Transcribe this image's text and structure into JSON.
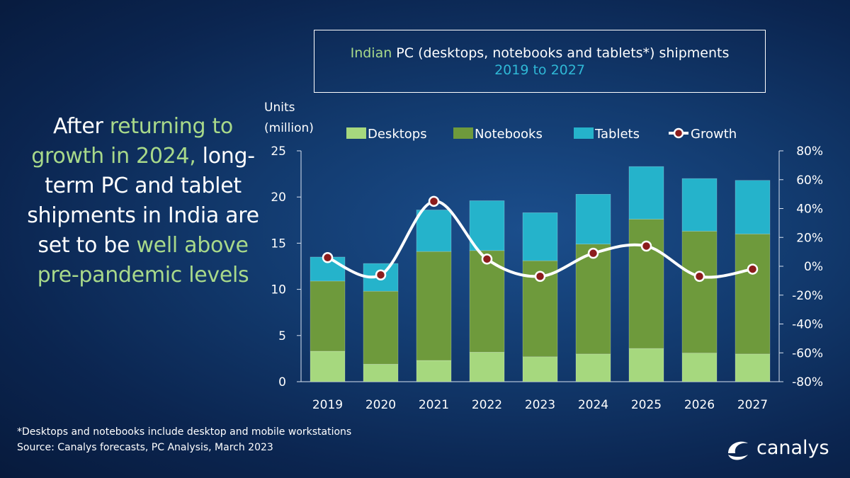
{
  "headline": {
    "p1": "After ",
    "p2": "returning to growth in 2024,",
    "p3": " long-term PC and tablet shipments in India are set to be ",
    "p4": "well above pre-pandemic levels"
  },
  "title": {
    "line1_a": "Indian",
    "line1_b": " PC (desktops, notebooks and tablets*) shipments",
    "line2": "2019 to 2027"
  },
  "chart_data": {
    "type": "bar",
    "stacked": true,
    "categories": [
      "2019",
      "2020",
      "2021",
      "2022",
      "2023",
      "2024",
      "2025",
      "2026",
      "2027"
    ],
    "series": [
      {
        "name": "Desktops",
        "values": [
          3.3,
          1.9,
          2.3,
          3.2,
          2.7,
          3.0,
          3.6,
          3.1,
          3.0
        ],
        "color": "#a6d87e"
      },
      {
        "name": "Notebooks",
        "values": [
          7.6,
          7.9,
          11.8,
          11.0,
          10.4,
          11.9,
          14.0,
          13.2,
          13.0
        ],
        "color": "#6e9a3c"
      },
      {
        "name": "Tablets",
        "values": [
          2.6,
          3.0,
          4.5,
          5.4,
          5.2,
          5.4,
          5.7,
          5.7,
          5.8
        ],
        "color": "#25b3cb"
      }
    ],
    "line_series": {
      "name": "Growth",
      "axis": "right",
      "values": [
        6,
        -6,
        45,
        5,
        -7,
        9,
        14,
        -7,
        -2
      ],
      "color": "#ffffff"
    },
    "y_left": {
      "label": "Units (million)",
      "label_line1": "Units",
      "label_line2": "(million)",
      "range": [
        0,
        25
      ],
      "ticks": [
        "0",
        "5",
        "10",
        "15",
        "20",
        "25"
      ]
    },
    "y_right": {
      "range": [
        -80,
        80
      ],
      "ticks": [
        "-80%",
        "-60%",
        "-40%",
        "-20%",
        "0%",
        "20%",
        "40%",
        "60%",
        "80%"
      ]
    },
    "legend_position": "top",
    "grid": false
  },
  "footnote": {
    "line1": "*Desktops and notebooks include desktop and mobile workstations",
    "line2": "Source: Canalys forecasts, PC Analysis, March 2023"
  },
  "logo": {
    "text": "canalys"
  }
}
